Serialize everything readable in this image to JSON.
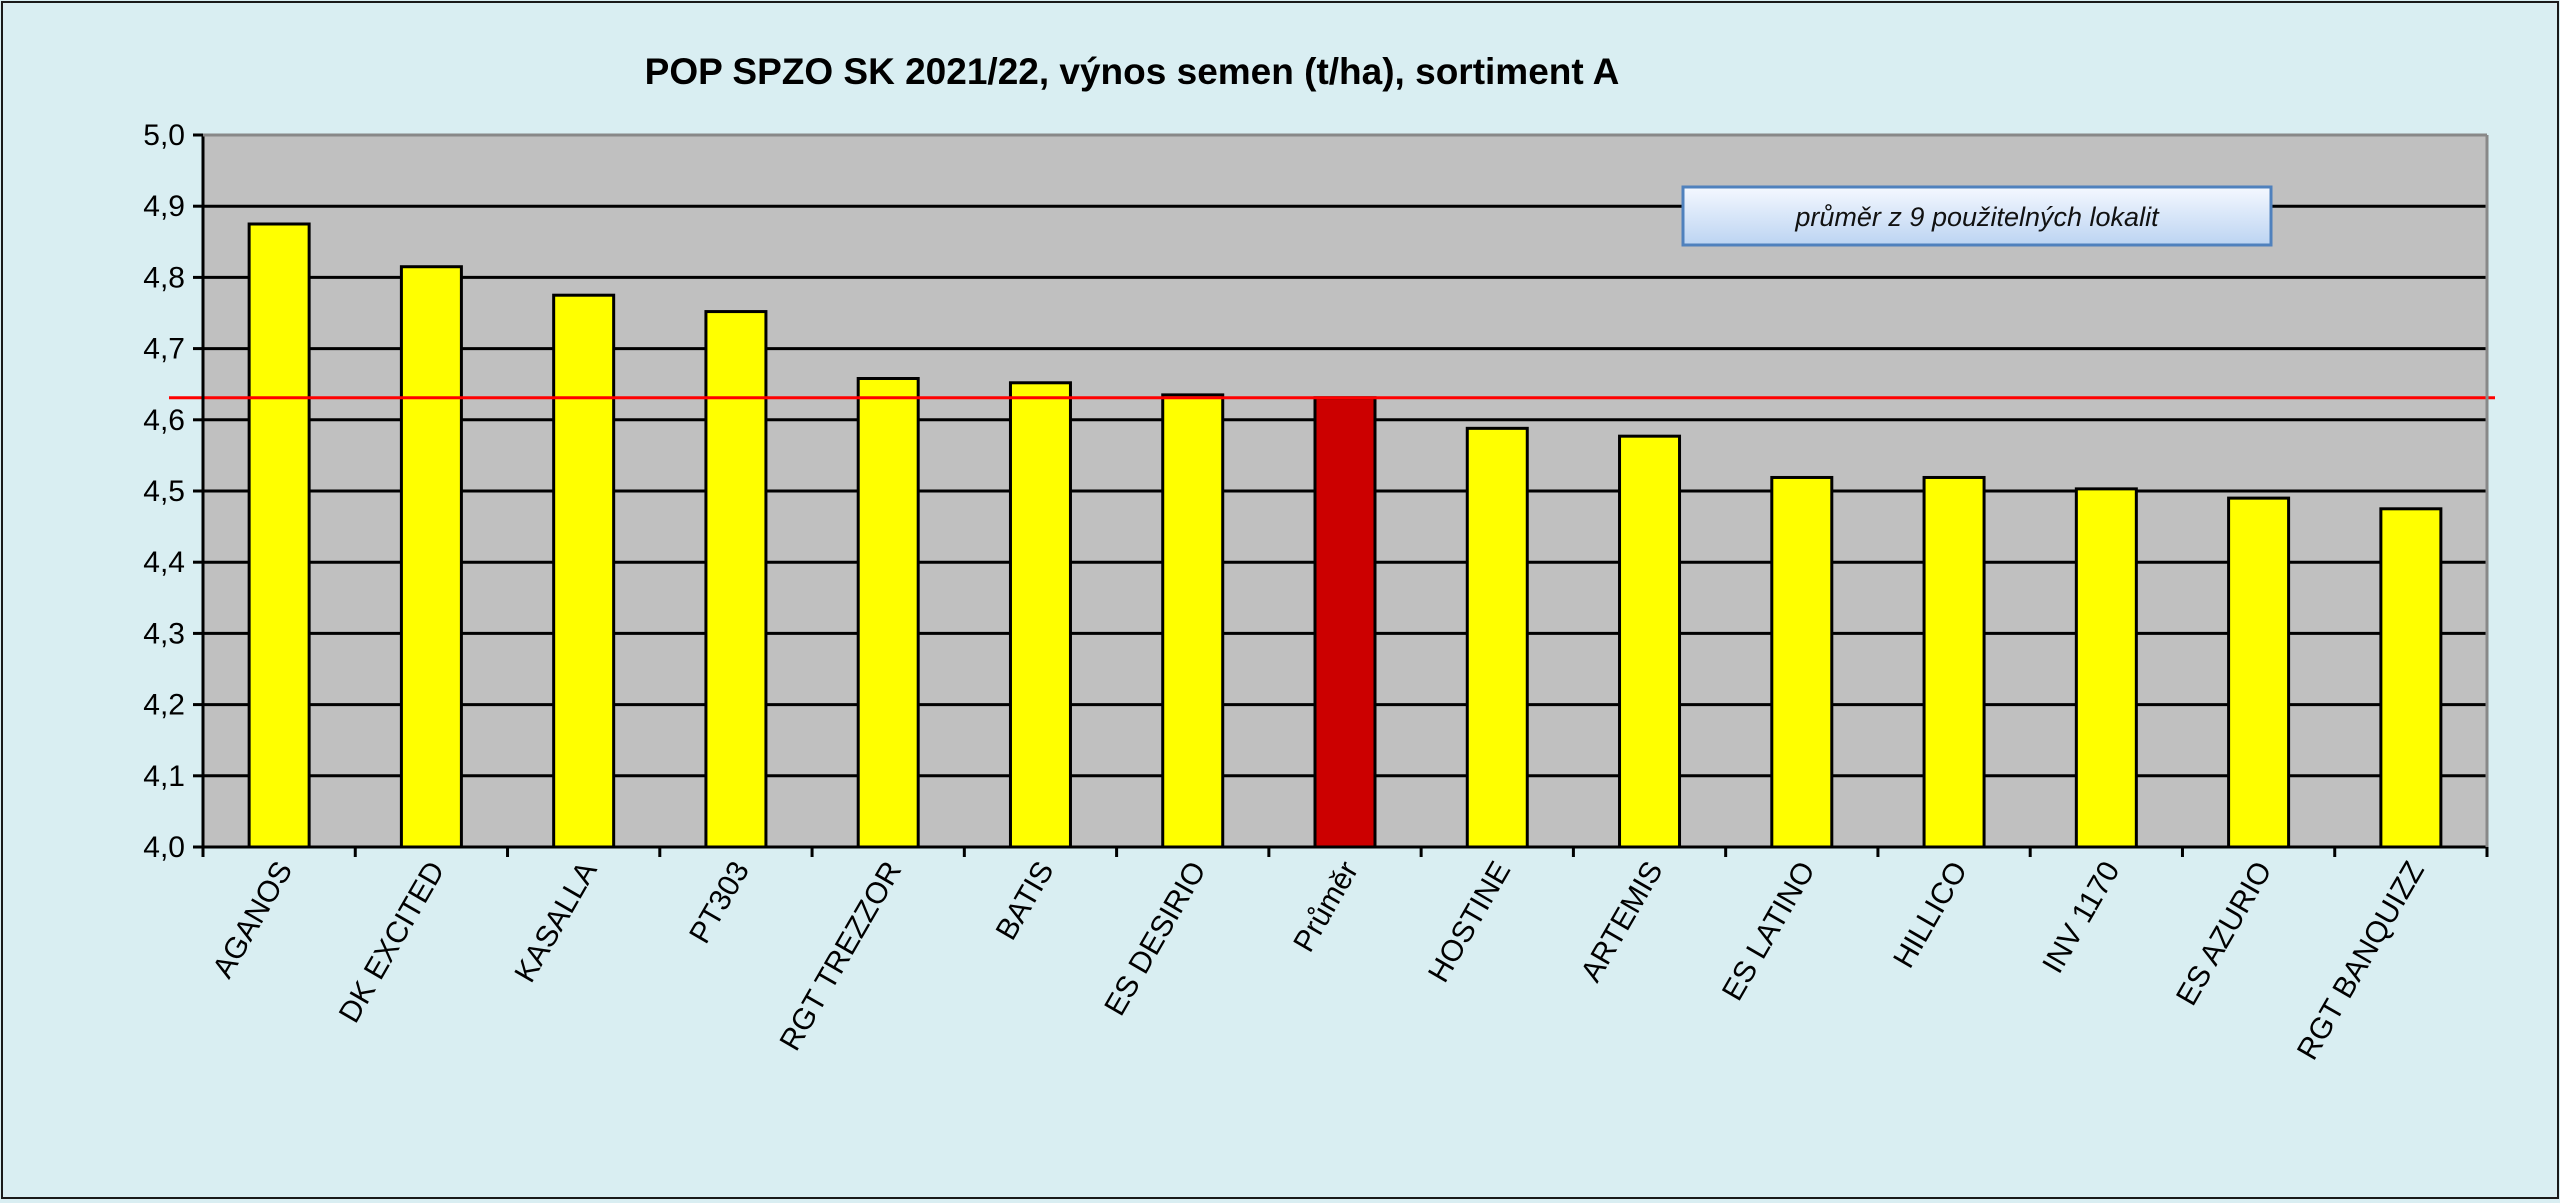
{
  "chart_data": {
    "type": "bar",
    "title": "POP SPZO SK 2021/22, výnos semen (t/ha), sortiment A",
    "xlabel": "",
    "ylabel": "",
    "ylim": [
      4.0,
      5.0
    ],
    "yticks": [
      "4,0",
      "4,1",
      "4,2",
      "4,3",
      "4,4",
      "4,5",
      "4,6",
      "4,7",
      "4,8",
      "4,9",
      "5,0"
    ],
    "grid": true,
    "categories": [
      "AGANOS",
      "DK EXCITED",
      "KASALLA",
      "PT303",
      "RGT TREZZOR",
      "BATIS",
      "ES DESIRIO",
      "Průměr",
      "HOSTINE",
      "ARTEMIS",
      "ES LATINO",
      "HILLICO",
      "INV 1170",
      "ES AZURIO",
      "RGT BANQUIZZ"
    ],
    "values": [
      4.875,
      4.815,
      4.775,
      4.752,
      4.658,
      4.652,
      4.635,
      4.631,
      4.588,
      4.577,
      4.519,
      4.519,
      4.503,
      4.49,
      4.475
    ],
    "highlight_category": "Průměr",
    "reference_line": 4.631,
    "annotation": "průměr z 9 použitelných lokalit",
    "colors": {
      "background": "#d9eef2",
      "plot": "#c0c0c0",
      "bar": "#ffff00",
      "highlight_bar": "#cc0000",
      "reference_line": "#ff0000",
      "grid": "#000000"
    }
  }
}
